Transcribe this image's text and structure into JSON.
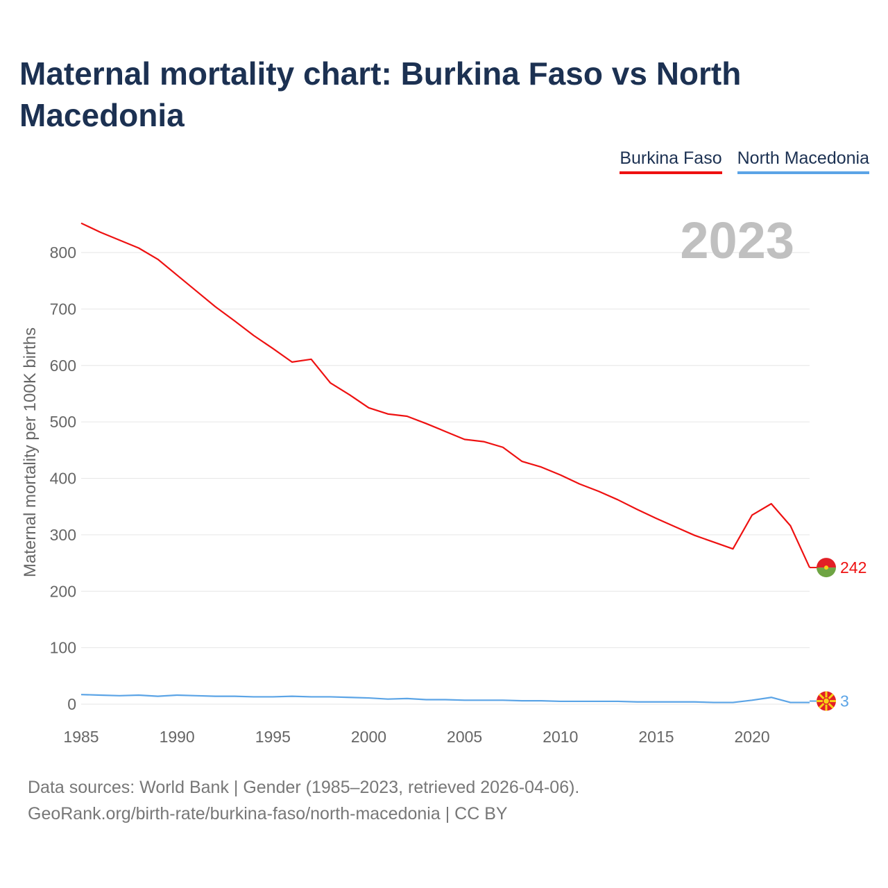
{
  "chart_data": {
    "type": "line",
    "title": "Maternal mortality chart: Burkina Faso vs North Macedonia",
    "ylabel": "Maternal mortality per 100K births",
    "xlabel": "",
    "year_label": "2023",
    "x": [
      1985,
      1986,
      1987,
      1988,
      1989,
      1990,
      1991,
      1992,
      1993,
      1994,
      1995,
      1996,
      1997,
      1998,
      1999,
      2000,
      2001,
      2002,
      2003,
      2004,
      2005,
      2006,
      2007,
      2008,
      2009,
      2010,
      2011,
      2012,
      2013,
      2014,
      2015,
      2016,
      2017,
      2018,
      2019,
      2020,
      2021,
      2022,
      2023
    ],
    "xticks": [
      1985,
      1990,
      1995,
      2000,
      2005,
      2010,
      2015,
      2020
    ],
    "yticks": [
      0,
      100,
      200,
      300,
      400,
      500,
      600,
      700,
      800
    ],
    "xlim": [
      1985,
      2023
    ],
    "ylim": [
      0,
      800
    ],
    "grid": true,
    "legend_position": "top-right",
    "series": [
      {
        "name": "Burkina Faso",
        "color": "#ee1111",
        "end_label": "242",
        "flag_icon": "burkina-faso-flag-icon",
        "values": [
          852,
          836,
          822,
          808,
          788,
          760,
          732,
          704,
          679,
          653,
          630,
          606,
          611,
          569,
          548,
          525,
          514,
          510,
          497,
          483,
          469,
          465,
          455,
          430,
          420,
          406,
          390,
          377,
          362,
          345,
          329,
          314,
          299,
          287,
          275,
          335,
          355,
          316,
          242
        ]
      },
      {
        "name": "North Macedonia",
        "color": "#5ba4e6",
        "end_label": "3",
        "flag_icon": "north-macedonia-flag-icon",
        "values": [
          17,
          16,
          15,
          16,
          14,
          16,
          15,
          14,
          14,
          13,
          13,
          14,
          13,
          13,
          12,
          11,
          9,
          10,
          8,
          8,
          7,
          7,
          7,
          6,
          6,
          5,
          5,
          5,
          5,
          4,
          4,
          4,
          4,
          3,
          3,
          7,
          12,
          3,
          3
        ]
      }
    ]
  },
  "source": {
    "line1": "Data sources: World Bank | Gender (1985–2023, retrieved 2026-04-06).",
    "line2": "GeoRank.org/birth-rate/burkina-faso/north-macedonia | CC BY"
  }
}
